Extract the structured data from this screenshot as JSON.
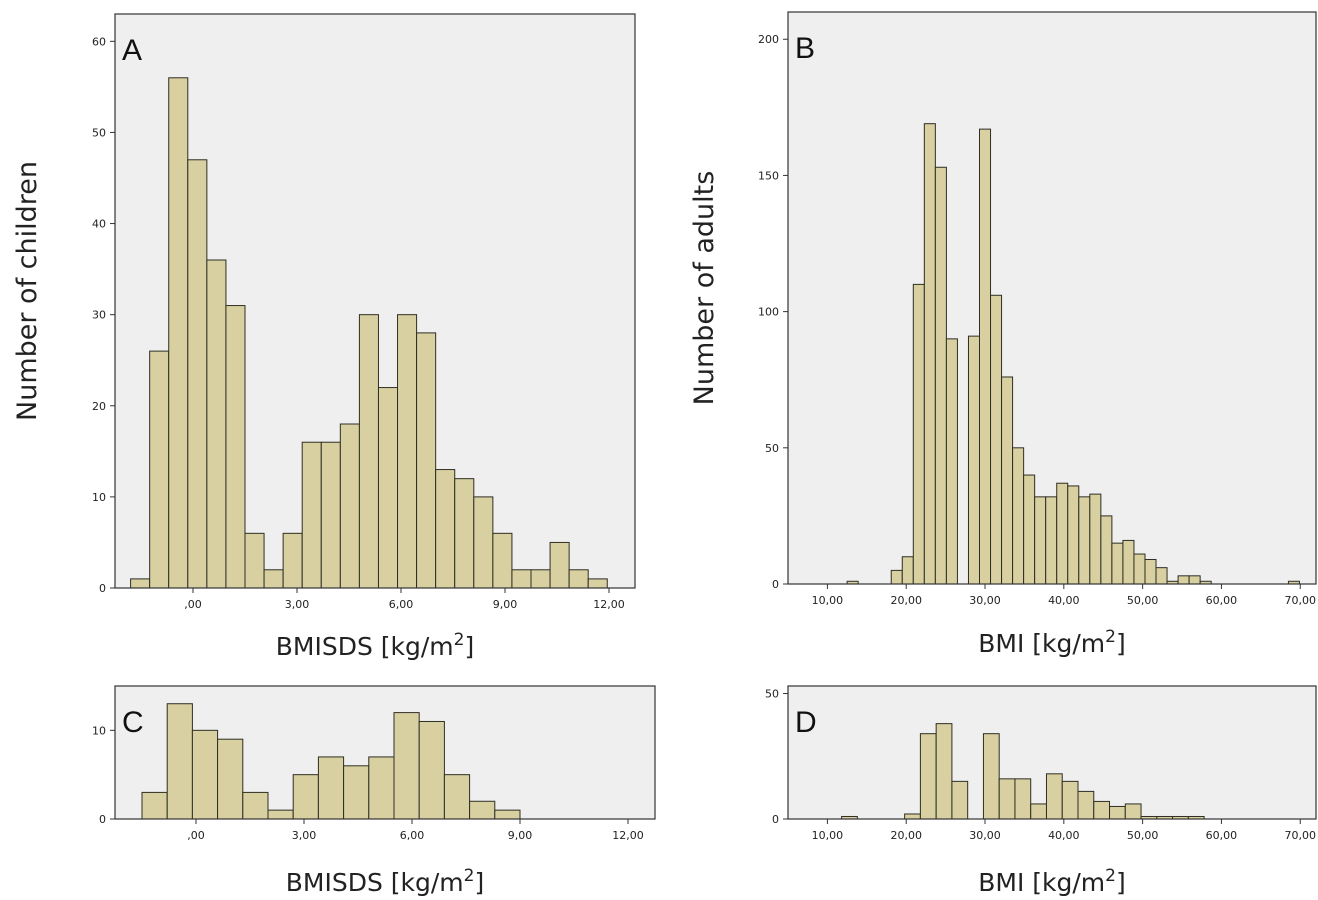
{
  "chart_data": [
    {
      "panel": "A",
      "type": "bar",
      "xlabel": "BMISDS [kg/m2]",
      "ylabel": "Number of children",
      "xlim": [
        -2.25,
        12.75
      ],
      "ylim": [
        0,
        63
      ],
      "x_ticks": [
        0,
        3,
        6,
        9,
        12
      ],
      "x_tick_labels": [
        ",00",
        "3,00",
        "6,00",
        "9,00",
        "12,00"
      ],
      "y_ticks": [
        0,
        10,
        20,
        30,
        40,
        50,
        60
      ],
      "y_tick_labels": [
        "0",
        "10",
        "20",
        "30",
        "40",
        "50",
        "60"
      ],
      "bin_width": 0.55,
      "bin_start": -1.8,
      "values": [
        1,
        26,
        56,
        47,
        36,
        31,
        6,
        2,
        6,
        16,
        16,
        18,
        30,
        22,
        30,
        28,
        13,
        12,
        10,
        6,
        2,
        2,
        5,
        2,
        1
      ]
    },
    {
      "panel": "B",
      "type": "bar",
      "xlabel": "BMI [kg/m2]",
      "ylabel": "Number of adults",
      "xlim": [
        5,
        72
      ],
      "ylim": [
        0,
        210
      ],
      "x_ticks": [
        10,
        20,
        30,
        40,
        50,
        60,
        70
      ],
      "x_tick_labels": [
        "10,00",
        "20,00",
        "30,00",
        "40,00",
        "50,00",
        "60,00",
        "70,00"
      ],
      "y_ticks": [
        0,
        50,
        100,
        150,
        200
      ],
      "y_tick_labels": [
        "0",
        "50",
        "100",
        "150",
        "200"
      ],
      "bin_width": 1.4,
      "bin_start": 12.5,
      "values": [
        1,
        0,
        0,
        0,
        5,
        10,
        110,
        169,
        153,
        90,
        0,
        91,
        167,
        106,
        76,
        50,
        40,
        32,
        32,
        37,
        36,
        32,
        33,
        25,
        15,
        16,
        11,
        9,
        6,
        1,
        3,
        3,
        1,
        0,
        0,
        0,
        0,
        0,
        0,
        0,
        1
      ]
    },
    {
      "panel": "C",
      "type": "bar",
      "xlabel": "BMISDS [kg/m2]",
      "ylabel": "",
      "xlim": [
        -2.25,
        12.75
      ],
      "ylim": [
        0,
        15
      ],
      "x_ticks": [
        0,
        3,
        6,
        9,
        12
      ],
      "x_tick_labels": [
        ",00",
        "3,00",
        "6,00",
        "9,00",
        "12,00"
      ],
      "y_ticks": [
        0,
        10
      ],
      "y_tick_labels": [
        "0",
        "10"
      ],
      "bin_width": 0.7,
      "bin_start": -1.5,
      "values": [
        3,
        13,
        10,
        9,
        3,
        1,
        5,
        7,
        6,
        7,
        12,
        11,
        5,
        2,
        1
      ]
    },
    {
      "panel": "D",
      "type": "bar",
      "xlabel": "BMI [kg/m2]",
      "ylabel": "",
      "xlim": [
        5,
        72
      ],
      "ylim": [
        0,
        53
      ],
      "x_ticks": [
        10,
        20,
        30,
        40,
        50,
        60,
        70
      ],
      "x_tick_labels": [
        "10,00",
        "20,00",
        "30,00",
        "40,00",
        "50,00",
        "60,00",
        "70,00"
      ],
      "y_ticks": [
        0,
        50
      ],
      "y_tick_labels": [
        "0",
        "50"
      ],
      "bin_width": 2.0,
      "bin_start": 11.8,
      "values": [
        1,
        0,
        0,
        0,
        2,
        34,
        38,
        15,
        0,
        34,
        16,
        16,
        6,
        18,
        15,
        11,
        7,
        5,
        6,
        1,
        1,
        1,
        1
      ]
    }
  ],
  "colors": {
    "bar_fill": "#d8d0a0",
    "bar_stroke": "#2e2e24",
    "plot_bg": "#efefef",
    "frame": "#333333"
  }
}
